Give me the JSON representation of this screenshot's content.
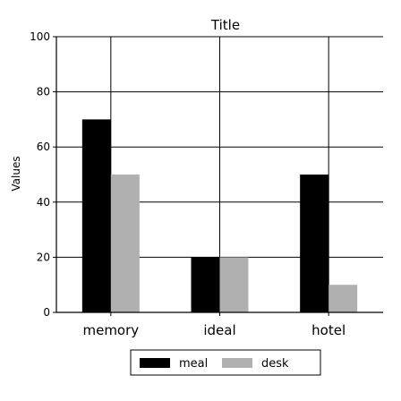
{
  "chart_data": {
    "type": "bar",
    "title": "Title",
    "xlabel": "",
    "ylabel": "Values",
    "categories": [
      "memory",
      "ideal",
      "hotel"
    ],
    "series": [
      {
        "name": "meal",
        "color": "#000000",
        "values": [
          70,
          20,
          50
        ]
      },
      {
        "name": "desk",
        "color": "#b0b0b0",
        "values": [
          50,
          20,
          10
        ]
      }
    ],
    "ylim": [
      0,
      100
    ],
    "yticks": [
      0,
      20,
      40,
      60,
      80,
      100
    ],
    "grid": true,
    "legend_position": "bottom-center"
  }
}
